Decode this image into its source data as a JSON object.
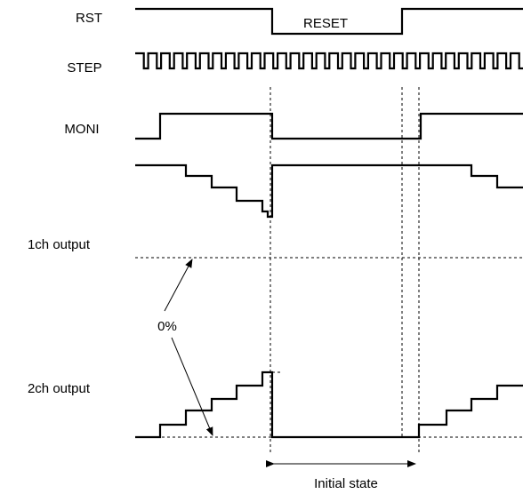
{
  "signals": {
    "rst": "RST",
    "step": "STEP",
    "moni": "MONI",
    "ch1": "1ch output",
    "ch2": "2ch output"
  },
  "annotations": {
    "reset": "RESET",
    "zero_percent": "0%",
    "initial_state": "Initial state"
  }
}
